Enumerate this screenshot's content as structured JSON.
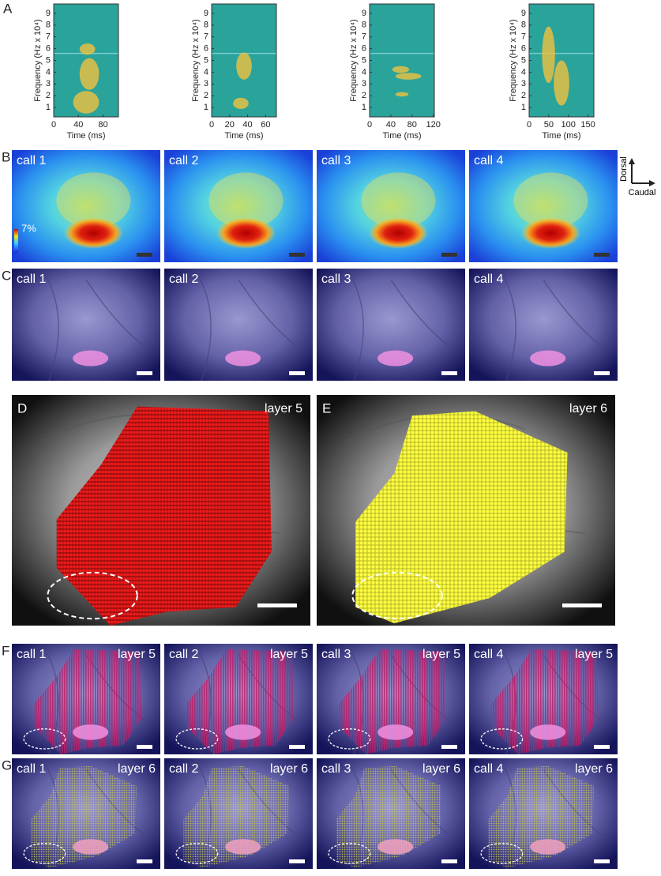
{
  "panel_labels": [
    "A",
    "B",
    "C",
    "D",
    "E",
    "F",
    "G"
  ],
  "spectrograms": [
    {
      "xlabel": "Time (ms)",
      "ylabel": "Frequency (Hz x 10⁴)",
      "xlim": [
        0,
        105
      ],
      "xticks": [
        0,
        40,
        80
      ],
      "ylim": [
        0.2,
        9.8
      ],
      "yticks": [
        1,
        2,
        3,
        4,
        5,
        6,
        7,
        8,
        9
      ]
    },
    {
      "xlabel": "Time (ms)",
      "ylabel": "Frequency (Hz x 10⁴)",
      "xlim": [
        0,
        72
      ],
      "xticks": [
        0,
        20,
        40,
        60
      ],
      "ylim": [
        0.2,
        9.8
      ],
      "yticks": [
        1,
        2,
        3,
        4,
        5,
        6,
        7,
        8,
        9
      ]
    },
    {
      "xlabel": "Time (ms)",
      "ylabel": "Frequency (Hz x 10⁴)",
      "xlim": [
        0,
        122
      ],
      "xticks": [
        0,
        40,
        80,
        120
      ],
      "ylim": [
        0.2,
        9.8
      ],
      "yticks": [
        1,
        2,
        3,
        4,
        5,
        6,
        7,
        8,
        9
      ]
    },
    {
      "xlabel": "Time (ms)",
      "ylabel": "Frequency (Hz x 10⁴)",
      "xlim": [
        0,
        165
      ],
      "xticks": [
        0,
        50,
        100,
        150
      ],
      "ylim": [
        0.2,
        9.8
      ],
      "yticks": [
        1,
        2,
        3,
        4,
        5,
        6,
        7,
        8,
        9
      ]
    }
  ],
  "calls": [
    "call 1",
    "call 2",
    "call 3",
    "call 4"
  ],
  "colorbar_label": "7%",
  "orientation": {
    "up": "Dorsal",
    "right": "Caudal"
  },
  "layers": [
    "layer 5",
    "layer 6"
  ]
}
